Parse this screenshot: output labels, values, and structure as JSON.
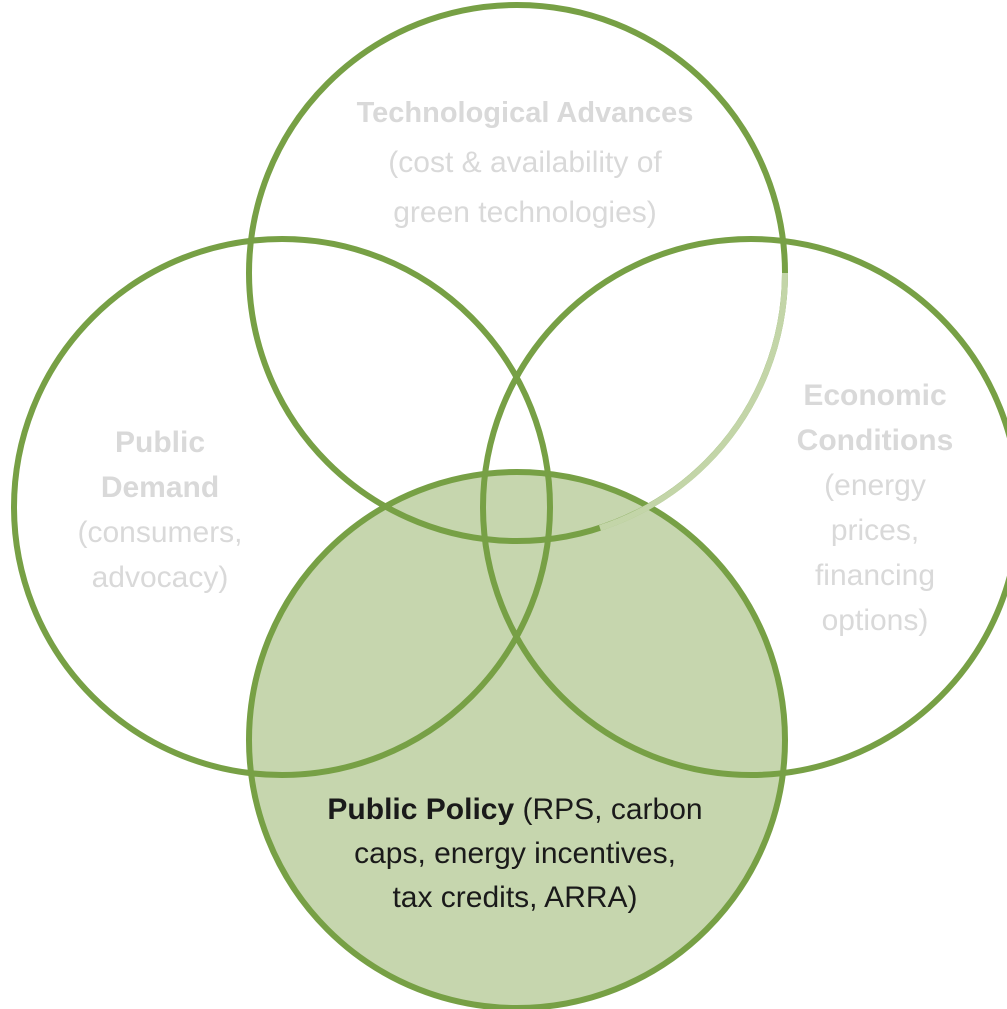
{
  "circles": {
    "technological": {
      "title": "Technological Advances",
      "detail_lines": [
        "(cost & availability of",
        "green technologies)"
      ]
    },
    "demand": {
      "title_lines": [
        "Public",
        "Demand"
      ],
      "detail_lines": [
        "(consumers,",
        "advocacy)"
      ]
    },
    "economic": {
      "title_lines": [
        "Economic",
        "Conditions"
      ],
      "detail_lines": [
        "(energy",
        "prices,",
        "financing",
        "options)"
      ]
    },
    "policy": {
      "title": "Public Policy",
      "detail_lines": [
        " (RPS, carbon",
        "caps, energy incentives,",
        "tax credits, ARRA)"
      ],
      "highlighted": true
    }
  },
  "colors": {
    "stroke": "#77a045",
    "policy_fill": "#c6d6ae",
    "muted_text": "#d9d9d9",
    "policy_text": "#1a1a1a",
    "background": "#ffffff"
  }
}
